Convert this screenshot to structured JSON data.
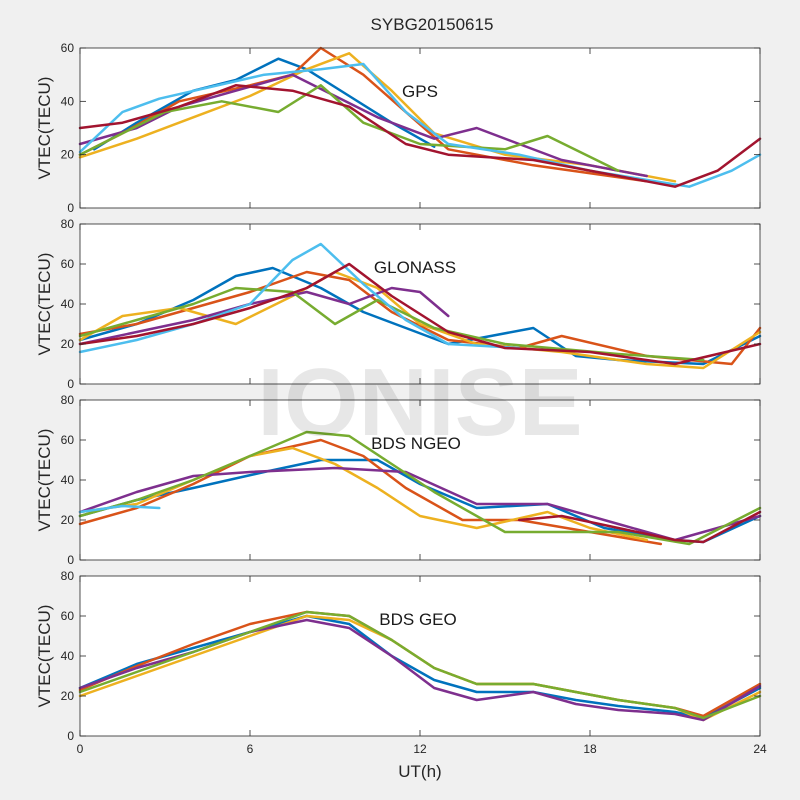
{
  "title": "SYBG20150615",
  "xlabel": "UT(h)",
  "watermark": "IONISE",
  "colors": [
    "#0072BD",
    "#D95319",
    "#EDB120",
    "#7E2F8E",
    "#77AC30",
    "#4DBEEE",
    "#A2142F"
  ],
  "chart_data": [
    {
      "type": "line",
      "label": "GPS",
      "ylabel": "VTEC(TECU)",
      "xlim": [
        0,
        24
      ],
      "ylim": [
        0,
        60
      ],
      "xticks": [
        0,
        6,
        12,
        18,
        24
      ],
      "yticks": [
        0,
        20,
        40,
        60
      ],
      "series": [
        {
          "x": [
            0.5,
            2,
            4,
            5.5,
            7,
            8,
            9.5,
            11,
            12.5
          ],
          "y": [
            22,
            32,
            44,
            48,
            56,
            52,
            42,
            32,
            23
          ]
        },
        {
          "x": [
            0,
            1.5,
            3.5,
            6,
            7.5,
            8.5,
            10,
            11.5,
            13,
            16,
            20
          ],
          "y": [
            20,
            28,
            40,
            46,
            50,
            60,
            50,
            36,
            22,
            16,
            10
          ]
        },
        {
          "x": [
            0,
            2,
            4,
            6,
            8,
            9.5,
            11,
            12.5,
            15,
            18,
            21
          ],
          "y": [
            19,
            26,
            34,
            42,
            52,
            58,
            44,
            28,
            20,
            16,
            10
          ]
        },
        {
          "x": [
            0,
            2,
            3.5,
            5.5,
            7.5,
            9,
            10.5,
            12.5,
            14,
            17,
            20
          ],
          "y": [
            24,
            30,
            38,
            44,
            50,
            42,
            34,
            26,
            30,
            18,
            12
          ]
        },
        {
          "x": [
            0,
            1.5,
            3,
            5,
            7,
            8.5,
            10,
            12,
            15,
            16.5,
            19
          ],
          "y": [
            20,
            28,
            36,
            40,
            36,
            46,
            32,
            24,
            22,
            27,
            14
          ]
        },
        {
          "x": [
            0,
            1.5,
            2.8,
            6.5,
            8.5,
            10,
            11.5,
            13,
            15.5,
            18,
            21.5,
            23,
            24
          ],
          "y": [
            21,
            36,
            41,
            50,
            52,
            54,
            36,
            24,
            20,
            14,
            8,
            14,
            20
          ]
        },
        {
          "x": [
            0,
            1.5,
            3.5,
            5.5,
            7.5,
            9.5,
            11.5,
            13,
            16,
            19,
            21,
            22.5,
            24
          ],
          "y": [
            30,
            32,
            38,
            46,
            44,
            38,
            24,
            20,
            18,
            12,
            8,
            14,
            26
          ]
        }
      ]
    },
    {
      "type": "line",
      "label": "GLONASS",
      "ylabel": "VTEC(TECU)",
      "xlim": [
        0,
        24
      ],
      "ylim": [
        0,
        80
      ],
      "xticks": [
        0,
        6,
        12,
        18,
        24
      ],
      "yticks": [
        0,
        20,
        40,
        60,
        80
      ],
      "series": [
        {
          "x": [
            0,
            2,
            4,
            5.5,
            6.8,
            8.5,
            10,
            11.5,
            13,
            16,
            17.5,
            19,
            22,
            24
          ],
          "y": [
            22,
            30,
            42,
            54,
            58,
            48,
            36,
            28,
            20,
            28,
            14,
            12,
            10,
            24
          ]
        },
        {
          "x": [
            0,
            2,
            4,
            6,
            8,
            9.5,
            11,
            13,
            15.5,
            17,
            20,
            23,
            24
          ],
          "y": [
            25,
            30,
            38,
            46,
            56,
            52,
            36,
            22,
            18,
            24,
            14,
            10,
            28
          ]
        },
        {
          "x": [
            0,
            1.5,
            3.5,
            5.5,
            7.5,
            9,
            10.5,
            12,
            14,
            17,
            20,
            22,
            24
          ],
          "y": [
            22,
            34,
            38,
            30,
            44,
            56,
            48,
            30,
            20,
            16,
            10,
            8,
            26
          ]
        },
        {
          "x": [
            0,
            2,
            4,
            6,
            8,
            9.5,
            11,
            12,
            13
          ],
          "y": [
            20,
            26,
            32,
            40,
            46,
            40,
            48,
            46,
            34
          ]
        },
        {
          "x": [
            0,
            2,
            4,
            5.5,
            7.5,
            9,
            10.5,
            12.5,
            15,
            19,
            22
          ],
          "y": [
            24,
            32,
            40,
            48,
            46,
            30,
            42,
            28,
            20,
            15,
            12
          ]
        },
        {
          "x": [
            0,
            2,
            4,
            6,
            7.5,
            8.5,
            10,
            11.5,
            13,
            15.5
          ],
          "y": [
            16,
            22,
            30,
            40,
            62,
            70,
            50,
            32,
            20,
            18
          ]
        },
        {
          "x": [
            0,
            2,
            4,
            6,
            8,
            9.5,
            11,
            13,
            15,
            18,
            21,
            24
          ],
          "y": [
            20,
            24,
            30,
            38,
            48,
            60,
            44,
            26,
            18,
            16,
            10,
            20
          ]
        }
      ]
    },
    {
      "type": "line",
      "label": "BDS NGEO",
      "ylabel": "VTEC(TECU)",
      "xlim": [
        0,
        24
      ],
      "ylim": [
        0,
        80
      ],
      "xticks": [
        0,
        6,
        12,
        18,
        24
      ],
      "yticks": [
        0,
        20,
        40,
        60,
        80
      ],
      "series": [
        {
          "x": [
            0,
            2,
            4,
            6.5,
            8.5,
            10.5,
            12,
            14,
            16.5,
            18.5,
            21,
            22,
            24
          ],
          "y": [
            22,
            30,
            36,
            44,
            50,
            50,
            38,
            26,
            28,
            16,
            10,
            9,
            22
          ]
        },
        {
          "x": [
            0,
            2,
            4,
            6,
            8.5,
            10,
            11.5,
            13.5,
            15.5,
            18,
            20.5
          ],
          "y": [
            18,
            26,
            38,
            52,
            60,
            52,
            36,
            20,
            20,
            14,
            8
          ]
        },
        {
          "x": [
            0,
            2,
            4,
            6,
            7.5,
            9,
            10.5,
            12,
            14,
            16.5,
            18,
            20
          ],
          "y": [
            24,
            28,
            40,
            52,
            56,
            48,
            36,
            22,
            16,
            24,
            16,
            10
          ]
        },
        {
          "x": [
            0,
            2,
            4,
            6,
            9,
            11.5,
            14,
            16.5,
            19,
            21,
            24
          ],
          "y": [
            24,
            34,
            42,
            44,
            46,
            44,
            28,
            28,
            18,
            10,
            22
          ]
        },
        {
          "x": [
            0,
            2,
            4,
            6,
            8,
            9.5,
            11,
            12.5,
            15,
            19,
            21.5,
            24
          ],
          "y": [
            22,
            30,
            40,
            52,
            64,
            62,
            48,
            34,
            14,
            14,
            8,
            26
          ]
        },
        {
          "x": [
            0,
            1.5,
            2.8
          ],
          "y": [
            24,
            27,
            26
          ]
        },
        {
          "x": [
            15.5,
            17,
            19,
            21,
            22,
            24
          ],
          "y": [
            20,
            22,
            16,
            10,
            9,
            24
          ]
        }
      ]
    },
    {
      "type": "line",
      "label": "BDS GEO",
      "ylabel": "VTEC(TECU)",
      "xlim": [
        0,
        24
      ],
      "ylim": [
        0,
        80
      ],
      "xticks": [
        0,
        6,
        12,
        18,
        24
      ],
      "yticks": [
        0,
        20,
        40,
        60,
        80
      ],
      "series": [
        {
          "x": [
            0,
            2,
            4,
            6,
            8,
            9.5,
            11,
            12.5,
            14,
            16,
            17.5,
            19,
            21,
            22,
            24
          ],
          "y": [
            24,
            36,
            44,
            52,
            60,
            56,
            40,
            28,
            22,
            22,
            18,
            15,
            12,
            9,
            24
          ]
        },
        {
          "x": [
            0,
            2,
            4,
            6,
            8,
            9.5,
            11,
            12.5,
            14,
            16,
            17.5,
            19,
            21,
            22,
            24
          ],
          "y": [
            23,
            35,
            46,
            56,
            62,
            60,
            48,
            34,
            26,
            26,
            22,
            18,
            14,
            10,
            26
          ]
        },
        {
          "x": [
            0,
            2,
            4,
            6,
            8,
            9.5,
            11,
            12.5,
            14,
            16,
            17.5,
            19,
            21,
            22,
            24
          ],
          "y": [
            20,
            30,
            40,
            50,
            60,
            58,
            48,
            34,
            26,
            26,
            22,
            18,
            14,
            8,
            22
          ]
        },
        {
          "x": [
            0,
            2,
            4,
            6,
            8,
            9.5,
            11,
            12.5,
            14,
            16,
            17.5,
            19,
            21,
            22,
            24
          ],
          "y": [
            24,
            34,
            42,
            52,
            58,
            54,
            40,
            24,
            18,
            22,
            16,
            13,
            11,
            8,
            25
          ]
        },
        {
          "x": [
            0,
            2,
            4,
            6,
            8,
            9.5,
            11,
            12.5,
            14,
            16,
            17.5,
            19,
            21,
            22,
            24
          ],
          "y": [
            22,
            32,
            42,
            52,
            62,
            60,
            48,
            34,
            26,
            26,
            22,
            18,
            14,
            9,
            20
          ]
        }
      ]
    }
  ]
}
